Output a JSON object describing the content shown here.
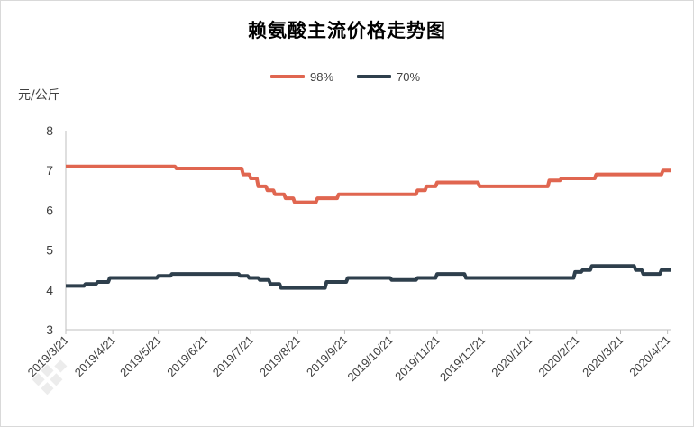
{
  "chart_data": {
    "type": "line",
    "title": "赖氨酸主流价格走势图",
    "ylabel": "元/公斤",
    "xlabel": "",
    "ylim": [
      3,
      8
    ],
    "yticks": [
      "3",
      "4",
      "5",
      "6",
      "7",
      "8"
    ],
    "x_range": [
      "2019-03-21",
      "2020-04-23"
    ],
    "x_tick_labels": [
      "2019/3/21",
      "2019/4/21",
      "2019/5/21",
      "2019/6/21",
      "2019/7/21",
      "2019/8/21",
      "2019/9/21",
      "2019/10/21",
      "2019/11/21",
      "2019/12/21",
      "2020/1/21",
      "2020/2/21",
      "2020/3/21",
      "2020/4/21"
    ],
    "x_tick_dates": [
      "2019-03-21",
      "2019-04-21",
      "2019-05-21",
      "2019-06-21",
      "2019-07-21",
      "2019-08-21",
      "2019-09-21",
      "2019-10-21",
      "2019-11-21",
      "2019-12-21",
      "2020-01-21",
      "2020-02-21",
      "2020-03-21",
      "2020-04-21"
    ],
    "grid": false,
    "legend_position": "top-center",
    "series": [
      {
        "name": "98%",
        "color": "#e06650",
        "points": [
          [
            "2019-03-21",
            7.1
          ],
          [
            "2019-06-01",
            7.1
          ],
          [
            "2019-06-02",
            7.05
          ],
          [
            "2019-07-15",
            7.05
          ],
          [
            "2019-07-16",
            6.9
          ],
          [
            "2019-07-20",
            6.9
          ],
          [
            "2019-07-21",
            6.8
          ],
          [
            "2019-07-25",
            6.8
          ],
          [
            "2019-07-26",
            6.6
          ],
          [
            "2019-07-31",
            6.6
          ],
          [
            "2019-08-01",
            6.5
          ],
          [
            "2019-08-05",
            6.5
          ],
          [
            "2019-08-06",
            6.4
          ],
          [
            "2019-08-12",
            6.4
          ],
          [
            "2019-08-13",
            6.3
          ],
          [
            "2019-08-18",
            6.3
          ],
          [
            "2019-08-19",
            6.2
          ],
          [
            "2019-09-02",
            6.2
          ],
          [
            "2019-09-03",
            6.3
          ],
          [
            "2019-09-16",
            6.3
          ],
          [
            "2019-09-17",
            6.4
          ],
          [
            "2019-11-07",
            6.4
          ],
          [
            "2019-11-08",
            6.5
          ],
          [
            "2019-11-13",
            6.5
          ],
          [
            "2019-11-14",
            6.6
          ],
          [
            "2019-11-20",
            6.6
          ],
          [
            "2019-11-21",
            6.7
          ],
          [
            "2019-12-18",
            6.7
          ],
          [
            "2019-12-19",
            6.6
          ],
          [
            "2020-02-02",
            6.6
          ],
          [
            "2020-02-03",
            6.75
          ],
          [
            "2020-02-10",
            6.75
          ],
          [
            "2020-02-11",
            6.8
          ],
          [
            "2020-03-04",
            6.8
          ],
          [
            "2020-03-05",
            6.9
          ],
          [
            "2020-04-17",
            6.9
          ],
          [
            "2020-04-18",
            7.0
          ],
          [
            "2020-04-23",
            7.0
          ]
        ]
      },
      {
        "name": "70%",
        "color": "#2e3f4c",
        "points": [
          [
            "2019-03-21",
            4.1
          ],
          [
            "2019-04-02",
            4.1
          ],
          [
            "2019-04-03",
            4.15
          ],
          [
            "2019-04-10",
            4.15
          ],
          [
            "2019-04-11",
            4.2
          ],
          [
            "2019-04-18",
            4.2
          ],
          [
            "2019-04-19",
            4.3
          ],
          [
            "2019-05-20",
            4.3
          ],
          [
            "2019-05-21",
            4.35
          ],
          [
            "2019-05-29",
            4.35
          ],
          [
            "2019-05-30",
            4.4
          ],
          [
            "2019-07-13",
            4.4
          ],
          [
            "2019-07-14",
            4.35
          ],
          [
            "2019-07-19",
            4.35
          ],
          [
            "2019-07-20",
            4.3
          ],
          [
            "2019-07-26",
            4.3
          ],
          [
            "2019-07-27",
            4.25
          ],
          [
            "2019-08-02",
            4.25
          ],
          [
            "2019-08-03",
            4.15
          ],
          [
            "2019-08-09",
            4.15
          ],
          [
            "2019-08-10",
            4.05
          ],
          [
            "2019-09-08",
            4.05
          ],
          [
            "2019-09-09",
            4.2
          ],
          [
            "2019-09-22",
            4.2
          ],
          [
            "2019-09-23",
            4.3
          ],
          [
            "2019-10-21",
            4.3
          ],
          [
            "2019-10-22",
            4.25
          ],
          [
            "2019-11-07",
            4.25
          ],
          [
            "2019-11-08",
            4.3
          ],
          [
            "2019-11-20",
            4.3
          ],
          [
            "2019-11-21",
            4.4
          ],
          [
            "2019-12-09",
            4.4
          ],
          [
            "2019-12-10",
            4.3
          ],
          [
            "2020-02-19",
            4.3
          ],
          [
            "2020-02-20",
            4.45
          ],
          [
            "2020-02-24",
            4.45
          ],
          [
            "2020-02-25",
            4.5
          ],
          [
            "2020-03-01",
            4.5
          ],
          [
            "2020-03-02",
            4.6
          ],
          [
            "2020-03-30",
            4.6
          ],
          [
            "2020-03-31",
            4.5
          ],
          [
            "2020-04-04",
            4.5
          ],
          [
            "2020-04-05",
            4.4
          ],
          [
            "2020-04-16",
            4.4
          ],
          [
            "2020-04-17",
            4.5
          ],
          [
            "2020-04-23",
            4.5
          ]
        ]
      }
    ]
  }
}
